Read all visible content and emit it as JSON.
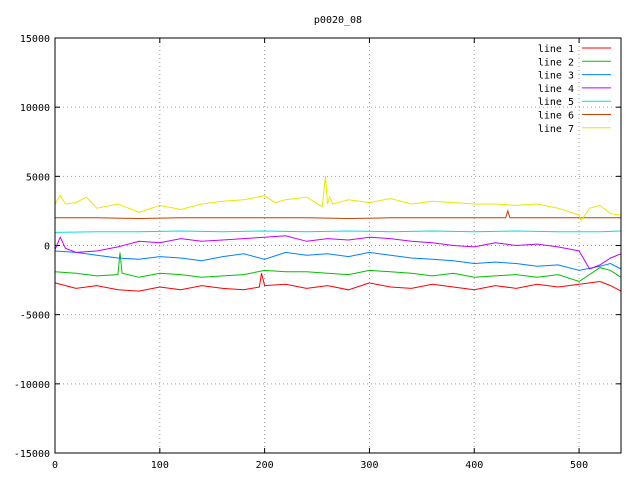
{
  "chart_data": {
    "type": "line",
    "title": "p0020_08",
    "xlabel": "",
    "ylabel": "",
    "xlim": [
      0,
      540
    ],
    "ylim": [
      -15000,
      15000
    ],
    "xticks": [
      0,
      100,
      200,
      300,
      400,
      500
    ],
    "yticks": [
      -15000,
      -10000,
      -5000,
      0,
      5000,
      10000,
      15000
    ],
    "grid": true,
    "legend_position": "top-right",
    "series": [
      {
        "name": "line 1",
        "color": "#ff0000",
        "x": [
          0,
          20,
          40,
          60,
          80,
          100,
          120,
          140,
          160,
          180,
          195,
          197,
          200,
          220,
          240,
          260,
          280,
          300,
          320,
          340,
          360,
          380,
          400,
          420,
          440,
          460,
          480,
          500,
          520,
          530,
          540
        ],
        "y": [
          -2700,
          -3100,
          -2900,
          -3200,
          -3300,
          -3000,
          -3200,
          -2900,
          -3100,
          -3200,
          -3000,
          -2000,
          -2900,
          -2800,
          -3100,
          -2900,
          -3200,
          -2700,
          -3000,
          -3100,
          -2800,
          -3000,
          -3200,
          -2900,
          -3100,
          -2800,
          -3000,
          -2800,
          -2600,
          -2900,
          -3300
        ]
      },
      {
        "name": "line 2",
        "color": "#00c000",
        "x": [
          0,
          20,
          40,
          60,
          62,
          64,
          80,
          100,
          120,
          140,
          160,
          180,
          200,
          220,
          240,
          260,
          280,
          300,
          320,
          340,
          360,
          380,
          400,
          420,
          440,
          460,
          480,
          500,
          520,
          530,
          540
        ],
        "y": [
          -1900,
          -2000,
          -2200,
          -2100,
          -500,
          -2000,
          -2300,
          -2000,
          -2100,
          -2300,
          -2200,
          -2100,
          -1800,
          -1900,
          -1900,
          -2000,
          -2100,
          -1800,
          -1900,
          -2000,
          -2200,
          -2000,
          -2300,
          -2200,
          -2100,
          -2300,
          -2100,
          -2600,
          -1600,
          -1800,
          -2300
        ]
      },
      {
        "name": "line 3",
        "color": "#0080ff",
        "x": [
          0,
          20,
          40,
          60,
          80,
          100,
          120,
          140,
          160,
          180,
          200,
          220,
          240,
          260,
          280,
          300,
          320,
          340,
          360,
          380,
          400,
          420,
          440,
          460,
          480,
          500,
          520,
          530,
          540
        ],
        "y": [
          -400,
          -500,
          -700,
          -900,
          -1000,
          -800,
          -900,
          -1100,
          -800,
          -600,
          -1000,
          -500,
          -700,
          -600,
          -800,
          -500,
          -700,
          -900,
          -1000,
          -1100,
          -1300,
          -1200,
          -1300,
          -1500,
          -1400,
          -1800,
          -1500,
          -1300,
          -1700
        ]
      },
      {
        "name": "line 4",
        "color": "#c000ff",
        "x": [
          0,
          5,
          10,
          20,
          40,
          60,
          80,
          100,
          120,
          140,
          160,
          180,
          200,
          220,
          240,
          260,
          280,
          300,
          320,
          340,
          360,
          380,
          400,
          420,
          440,
          460,
          480,
          500,
          510,
          520,
          530,
          540
        ],
        "y": [
          -300,
          600,
          -200,
          -500,
          -400,
          -100,
          300,
          200,
          500,
          300,
          400,
          500,
          600,
          700,
          300,
          500,
          400,
          600,
          500,
          300,
          200,
          0,
          -100,
          200,
          0,
          100,
          -100,
          -400,
          -1700,
          -1400,
          -900,
          -600
        ]
      },
      {
        "name": "line 5",
        "color": "#00e0e0",
        "x": [
          0,
          40,
          80,
          120,
          160,
          200,
          240,
          280,
          320,
          360,
          400,
          440,
          480,
          520,
          540
        ],
        "y": [
          950,
          1000,
          1000,
          1050,
          1000,
          1050,
          1000,
          1050,
          1000,
          1050,
          1000,
          1050,
          1000,
          1000,
          1050
        ]
      },
      {
        "name": "line 6",
        "color": "#c04000",
        "x": [
          0,
          40,
          80,
          120,
          160,
          200,
          240,
          280,
          320,
          360,
          400,
          430,
          432,
          434,
          440,
          480,
          520,
          540
        ],
        "y": [
          2000,
          2000,
          1950,
          2000,
          2000,
          2000,
          2000,
          1950,
          2000,
          2000,
          2000,
          2000,
          2500,
          2000,
          2000,
          2000,
          2000,
          2000
        ]
      },
      {
        "name": "line 7",
        "color": "#e8e800",
        "x": [
          0,
          5,
          10,
          20,
          30,
          40,
          60,
          80,
          100,
          120,
          140,
          160,
          180,
          200,
          210,
          220,
          240,
          255,
          258,
          260,
          262,
          265,
          280,
          300,
          320,
          340,
          360,
          380,
          400,
          420,
          440,
          460,
          480,
          500,
          502,
          510,
          520,
          530,
          540
        ],
        "y": [
          3000,
          3600,
          3000,
          3100,
          3500,
          2700,
          3000,
          2400,
          2900,
          2600,
          3000,
          3200,
          3300,
          3600,
          3100,
          3300,
          3500,
          2800,
          5000,
          3000,
          3500,
          3000,
          3300,
          3100,
          3400,
          3000,
          3200,
          3100,
          3000,
          3000,
          2900,
          3000,
          2700,
          2200,
          1800,
          2700,
          2900,
          2300,
          2200
        ]
      }
    ]
  }
}
